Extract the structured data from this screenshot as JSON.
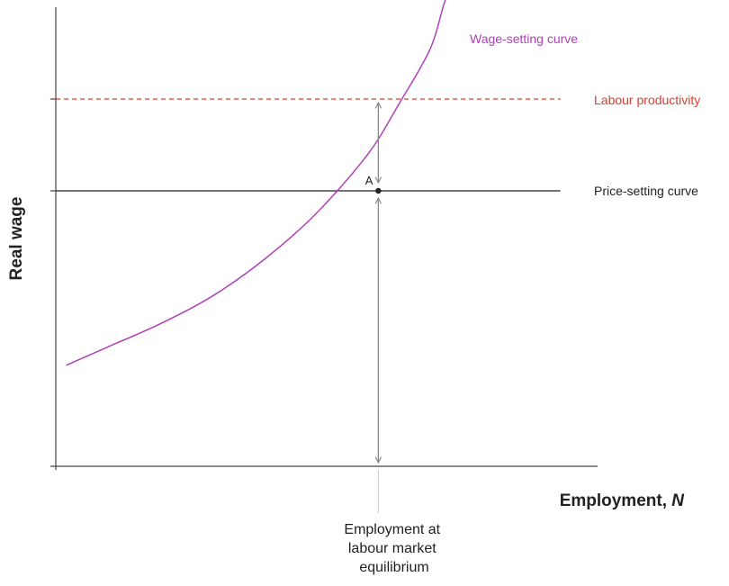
{
  "colors": {
    "axis": "#444444",
    "wage_setting": "#b040b8",
    "price_setting": "#222222",
    "labour_productivity": "#e03c2a",
    "arrows": "#8a8a8a",
    "point": "#222222"
  },
  "chart_data": {
    "type": "line",
    "title": "",
    "xlabel": "Employment, N",
    "xlabel_main": "Employment, ",
    "xlabel_var": "N",
    "ylabel": "Real wage",
    "grid": false,
    "xlim": [
      0,
      1
    ],
    "ylim": [
      0,
      1
    ],
    "series": [
      {
        "name": "Wage-setting curve",
        "style": "solid",
        "color": "#b040b8",
        "x": [
          0.02,
          0.1,
          0.2,
          0.3,
          0.4,
          0.5,
          0.6,
          0.66,
          0.72,
          0.75,
          0.79
        ],
        "y": [
          0.22,
          0.26,
          0.31,
          0.37,
          0.45,
          0.55,
          0.68,
          0.79,
          0.91,
          1.02,
          1.13
        ]
      },
      {
        "name": "Price-setting curve",
        "style": "solid",
        "color": "#222222",
        "x": [
          0,
          0.97
        ],
        "y": [
          0.6,
          0.6
        ]
      },
      {
        "name": "Labour productivity",
        "style": "dashed",
        "color": "#e03c2a",
        "x": [
          0,
          0.97
        ],
        "y": [
          0.8,
          0.8
        ]
      }
    ],
    "points": [
      {
        "label": "A",
        "x": 0.62,
        "y": 0.6
      }
    ],
    "x_annotation": {
      "x": 0.62,
      "lines": [
        "Employment at",
        "labour market",
        "equilibrium"
      ]
    },
    "arrows": [
      {
        "x": 0.62,
        "from": 0.6,
        "to": 0.8
      },
      {
        "x": 0.62,
        "from": 0.0,
        "to": 0.6
      }
    ]
  }
}
